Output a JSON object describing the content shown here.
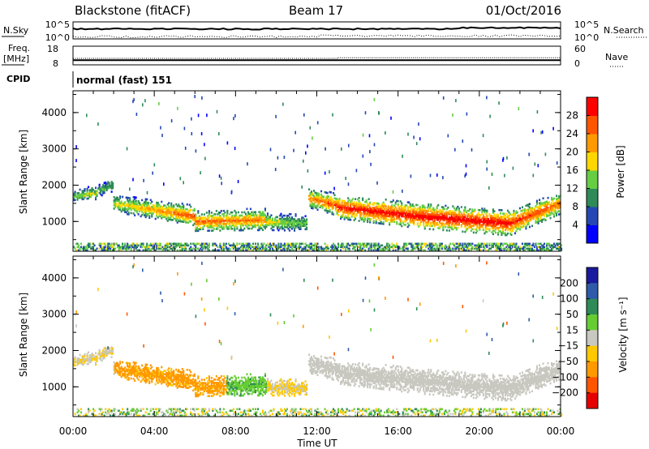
{
  "header": {
    "station": "Blackstone (fitACF)",
    "beam": "Beam 17",
    "date": "01/Oct/2016"
  },
  "top_panels": {
    "nsky": {
      "label": "N.Sky",
      "left_ticks": [
        "10^5",
        "10^0"
      ],
      "right_label": "N.Search",
      "right_ticks": [
        "10^5",
        "10^0"
      ]
    },
    "freq": {
      "label_line1": "Freq.",
      "label_line2": "[MHz]",
      "left_ticks": [
        "18",
        "8"
      ],
      "right_label": "Nave",
      "right_ticks": [
        "60",
        "0"
      ],
      "freq_mhz": 10.5,
      "nave_start": 21,
      "nave_after_13h": 23
    },
    "cpid": {
      "label": "CPID",
      "value": "normal (fast) 151"
    }
  },
  "chart_data": [
    {
      "type": "heatmap",
      "name": "power",
      "xlabel": "",
      "ylabel": "Slant Range [km]",
      "xlim": [
        0,
        24
      ],
      "ylim": [
        180,
        4600
      ],
      "yticks": [
        1000,
        2000,
        3000,
        4000
      ],
      "xtick_labels": [
        "00:00",
        "04:00",
        "08:00",
        "12:00",
        "16:00",
        "20:00",
        "00:00"
      ],
      "colorbar": {
        "label": "Power [dB]",
        "ticks": [
          "4",
          "8",
          "12",
          "16",
          "20",
          "24",
          "28"
        ],
        "range": [
          0,
          30
        ],
        "colors": [
          "#0000ff",
          "#2447b4",
          "#2e8b57",
          "#66cd44",
          "#ffd700",
          "#ff9900",
          "#ff5500",
          "#ff0000"
        ]
      },
      "bands": [
        {
          "t0": 0.0,
          "t1": 1.2,
          "range_km": [
            1700,
            1800
          ],
          "width_km": [
            350,
            400
          ],
          "peak_db": [
            14,
            16
          ]
        },
        {
          "t0": 1.2,
          "t1": 2.0,
          "range_km": [
            1850,
            2000
          ],
          "width_km": [
            380,
            350
          ],
          "peak_db": [
            12,
            12
          ]
        },
        {
          "t0": 2.0,
          "t1": 6.0,
          "range_km": [
            1500,
            1150
          ],
          "width_km": [
            500,
            550
          ],
          "peak_db": [
            16,
            26
          ]
        },
        {
          "t0": 6.0,
          "t1": 9.5,
          "range_km": [
            1000,
            1050
          ],
          "width_km": [
            550,
            600
          ],
          "peak_db": [
            24,
            22
          ]
        },
        {
          "t0": 9.5,
          "t1": 11.5,
          "range_km": [
            1000,
            950
          ],
          "width_km": [
            500,
            450
          ],
          "peak_db": [
            18,
            12
          ]
        },
        {
          "t0": 11.6,
          "t1": 13.0,
          "range_km": [
            1650,
            1450
          ],
          "width_km": [
            550,
            600
          ],
          "peak_db": [
            22,
            26
          ]
        },
        {
          "t0": 13.0,
          "t1": 17.0,
          "range_km": [
            1400,
            1150
          ],
          "width_km": [
            650,
            700
          ],
          "peak_db": [
            28,
            30
          ]
        },
        {
          "t0": 17.0,
          "t1": 21.5,
          "range_km": [
            1150,
            950
          ],
          "width_km": [
            700,
            700
          ],
          "peak_db": [
            30,
            30
          ]
        },
        {
          "t0": 21.5,
          "t1": 24.0,
          "range_km": [
            950,
            1500
          ],
          "width_km": [
            700,
            600
          ],
          "peak_db": [
            28,
            24
          ]
        }
      ]
    },
    {
      "type": "heatmap",
      "name": "velocity",
      "xlabel": "Time UT",
      "ylabel": "Slant Range [km]",
      "xlim": [
        0,
        24
      ],
      "ylim": [
        180,
        4600
      ],
      "yticks": [
        1000,
        2000,
        3000,
        4000
      ],
      "xtick_labels": [
        "00:00",
        "04:00",
        "08:00",
        "12:00",
        "16:00",
        "20:00",
        "00:00"
      ],
      "colorbar": {
        "label": "Velocity [m s⁻¹]",
        "ticks": [
          "200",
          "100",
          "50",
          "15",
          "−15",
          "−50",
          "−100",
          "−200"
        ],
        "range": [
          -250,
          250
        ],
        "colors": [
          "#1a1a9e",
          "#2e5aa8",
          "#2e8b57",
          "#66cc33",
          "#c8c8c0",
          "#ffc800",
          "#ff9900",
          "#ff5500",
          "#e60000"
        ]
      },
      "segments": [
        {
          "t0": 0.0,
          "t1": 2.0,
          "velocity": -10
        },
        {
          "t0": 2.0,
          "t1": 7.5,
          "velocity": -60
        },
        {
          "t0": 7.5,
          "t1": 9.5,
          "velocity": 40
        },
        {
          "t0": 9.5,
          "t1": 11.5,
          "velocity": -20
        },
        {
          "t0": 11.6,
          "t1": 24.0,
          "velocity": 0
        }
      ]
    }
  ]
}
